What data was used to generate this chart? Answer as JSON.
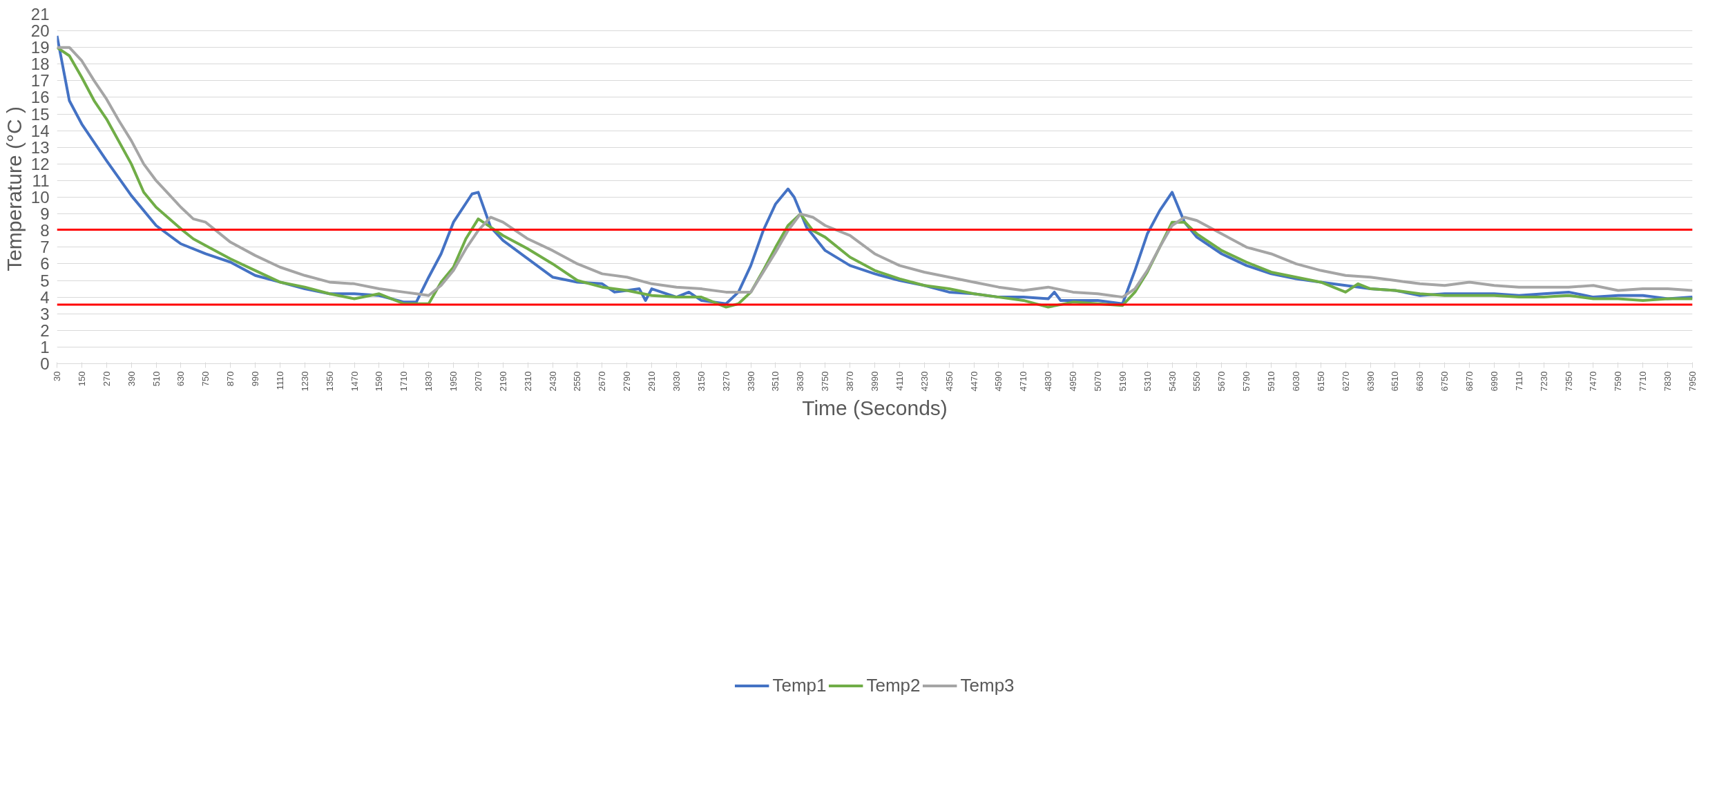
{
  "chart_data": {
    "type": "line",
    "xlabel": "Time (Seconds)",
    "ylabel": "Temperature (°C )",
    "xlim": [
      30,
      7950
    ],
    "ylim": [
      0,
      21
    ],
    "xticks": [
      30,
      150,
      270,
      390,
      510,
      630,
      750,
      870,
      990,
      1110,
      1230,
      1350,
      1470,
      1590,
      1710,
      1830,
      1950,
      2070,
      2190,
      2310,
      2430,
      2550,
      2670,
      2790,
      2910,
      3030,
      3150,
      3270,
      3390,
      3510,
      3630,
      3750,
      3870,
      3990,
      4110,
      4230,
      4350,
      4470,
      4590,
      4710,
      4830,
      4950,
      5070,
      5190,
      5310,
      5430,
      5550,
      5670,
      5790,
      5910,
      6030,
      6150,
      6270,
      6390,
      6510,
      6630,
      6750,
      6870,
      6990,
      7110,
      7230,
      7350,
      7470,
      7590,
      7710,
      7830,
      7950
    ],
    "yticks": [
      0,
      1,
      2,
      3,
      4,
      5,
      6,
      7,
      8,
      9,
      10,
      11,
      12,
      13,
      14,
      15,
      16,
      17,
      18,
      19,
      20,
      21
    ],
    "grid": "y",
    "legend": "bottom",
    "marker": "none",
    "line_style": "solid",
    "ref_lines": [
      {
        "axis": "y",
        "value": 8.05,
        "label": null,
        "color": "#ff0000"
      },
      {
        "axis": "y",
        "value": 3.55,
        "label": null,
        "color": "#ff0000"
      }
    ],
    "series": [
      {
        "name": "Temp1",
        "color": "#4472c4",
        "x": [
          30,
          90,
          150,
          270,
          390,
          510,
          630,
          750,
          870,
          990,
          1110,
          1230,
          1350,
          1470,
          1590,
          1710,
          1770,
          1830,
          1890,
          1950,
          2040,
          2070,
          2130,
          2190,
          2310,
          2430,
          2550,
          2670,
          2730,
          2790,
          2850,
          2880,
          2910,
          3030,
          3090,
          3150,
          3270,
          3330,
          3390,
          3450,
          3510,
          3570,
          3600,
          3660,
          3750,
          3870,
          3990,
          4110,
          4230,
          4350,
          4470,
          4590,
          4710,
          4830,
          4860,
          4890,
          5070,
          5190,
          5250,
          5310,
          5370,
          5430,
          5490,
          5550,
          5670,
          5790,
          5910,
          6030,
          6150,
          6270,
          6390,
          6510,
          6630,
          6750,
          6870,
          6990,
          7110,
          7230,
          7350,
          7470,
          7590,
          7710,
          7830,
          7950
        ],
        "values": [
          19.7,
          15.8,
          14.4,
          12.2,
          10.1,
          8.3,
          7.2,
          6.6,
          6.1,
          5.3,
          4.9,
          4.5,
          4.2,
          4.2,
          4.1,
          3.7,
          3.7,
          5.2,
          6.6,
          8.5,
          10.2,
          10.3,
          8.2,
          7.4,
          6.3,
          5.2,
          4.9,
          4.8,
          4.3,
          4.4,
          4.5,
          3.8,
          4.5,
          4.0,
          4.3,
          3.8,
          3.6,
          4.3,
          5.9,
          8.0,
          9.6,
          10.5,
          10.0,
          8.2,
          6.8,
          5.9,
          5.4,
          5.0,
          4.7,
          4.3,
          4.2,
          4.0,
          4.0,
          3.9,
          4.3,
          3.8,
          3.8,
          3.6,
          5.6,
          7.8,
          9.2,
          10.3,
          8.5,
          7.6,
          6.6,
          5.9,
          5.4,
          5.1,
          4.9,
          4.7,
          4.5,
          4.4,
          4.1,
          4.2,
          4.2,
          4.2,
          4.1,
          4.2,
          4.3,
          4.0,
          4.1,
          4.1,
          3.9,
          4.0
        ]
      },
      {
        "name": "Temp2",
        "color": "#70ad47",
        "x": [
          30,
          90,
          150,
          210,
          270,
          390,
          450,
          510,
          630,
          690,
          750,
          870,
          990,
          1110,
          1230,
          1350,
          1470,
          1590,
          1650,
          1710,
          1770,
          1830,
          1890,
          1950,
          2010,
          2070,
          2130,
          2190,
          2310,
          2430,
          2550,
          2670,
          2790,
          2910,
          3030,
          3150,
          3270,
          3330,
          3390,
          3450,
          3510,
          3570,
          3630,
          3690,
          3750,
          3870,
          3990,
          4110,
          4230,
          4350,
          4470,
          4590,
          4710,
          4830,
          4950,
          5070,
          5190,
          5250,
          5310,
          5370,
          5430,
          5490,
          5550,
          5670,
          5790,
          5910,
          6030,
          6150,
          6270,
          6330,
          6390,
          6510,
          6630,
          6750,
          6870,
          6990,
          7110,
          7230,
          7350,
          7470,
          7590,
          7710,
          7830,
          7950
        ],
        "values": [
          19.0,
          18.5,
          17.2,
          15.8,
          14.7,
          12.0,
          10.3,
          9.4,
          8.1,
          7.5,
          7.1,
          6.3,
          5.6,
          4.9,
          4.6,
          4.2,
          3.9,
          4.2,
          3.9,
          3.6,
          3.6,
          3.6,
          4.9,
          5.8,
          7.5,
          8.7,
          8.2,
          7.7,
          6.9,
          6.0,
          5.0,
          4.6,
          4.4,
          4.1,
          4.0,
          4.0,
          3.4,
          3.6,
          4.3,
          5.6,
          7.0,
          8.3,
          9.0,
          8.0,
          7.6,
          6.4,
          5.6,
          5.1,
          4.7,
          4.5,
          4.2,
          4.0,
          3.8,
          3.4,
          3.7,
          3.6,
          3.5,
          4.3,
          5.5,
          7.0,
          8.5,
          8.5,
          7.8,
          6.8,
          6.1,
          5.5,
          5.2,
          4.9,
          4.3,
          4.8,
          4.5,
          4.4,
          4.2,
          4.1,
          4.1,
          4.1,
          4.0,
          4.0,
          4.1,
          3.9,
          3.9,
          3.8,
          3.9,
          3.9
        ]
      },
      {
        "name": "Temp3",
        "color": "#a5a5a5",
        "x": [
          30,
          90,
          150,
          210,
          270,
          330,
          390,
          450,
          510,
          570,
          630,
          690,
          750,
          810,
          870,
          990,
          1110,
          1230,
          1350,
          1470,
          1590,
          1710,
          1770,
          1830,
          1890,
          1950,
          2010,
          2070,
          2130,
          2190,
          2310,
          2430,
          2550,
          2670,
          2790,
          2910,
          3030,
          3150,
          3270,
          3390,
          3450,
          3510,
          3570,
          3630,
          3690,
          3750,
          3870,
          3990,
          4110,
          4230,
          4350,
          4470,
          4590,
          4710,
          4830,
          4950,
          5070,
          5190,
          5250,
          5310,
          5370,
          5430,
          5490,
          5550,
          5670,
          5790,
          5910,
          6030,
          6150,
          6270,
          6390,
          6510,
          6630,
          6750,
          6870,
          6990,
          7110,
          7230,
          7350,
          7470,
          7590,
          7710,
          7830,
          7950
        ],
        "values": [
          19.0,
          19.0,
          18.2,
          17.0,
          15.9,
          14.6,
          13.4,
          12.0,
          11.0,
          10.2,
          9.4,
          8.7,
          8.5,
          7.9,
          7.3,
          6.5,
          5.8,
          5.3,
          4.9,
          4.8,
          4.5,
          4.3,
          4.2,
          4.1,
          4.7,
          5.6,
          6.9,
          8.0,
          8.8,
          8.5,
          7.5,
          6.8,
          6.0,
          5.4,
          5.2,
          4.8,
          4.6,
          4.5,
          4.3,
          4.3,
          5.5,
          6.7,
          8.0,
          9.0,
          8.8,
          8.3,
          7.7,
          6.6,
          5.9,
          5.5,
          5.2,
          4.9,
          4.6,
          4.4,
          4.6,
          4.3,
          4.2,
          4.0,
          4.5,
          5.6,
          7.0,
          8.3,
          8.8,
          8.6,
          7.8,
          7.0,
          6.6,
          6.0,
          5.6,
          5.3,
          5.2,
          5.0,
          4.8,
          4.7,
          4.9,
          4.7,
          4.6,
          4.6,
          4.6,
          4.7,
          4.4,
          4.5,
          4.5,
          4.4
        ]
      }
    ]
  }
}
